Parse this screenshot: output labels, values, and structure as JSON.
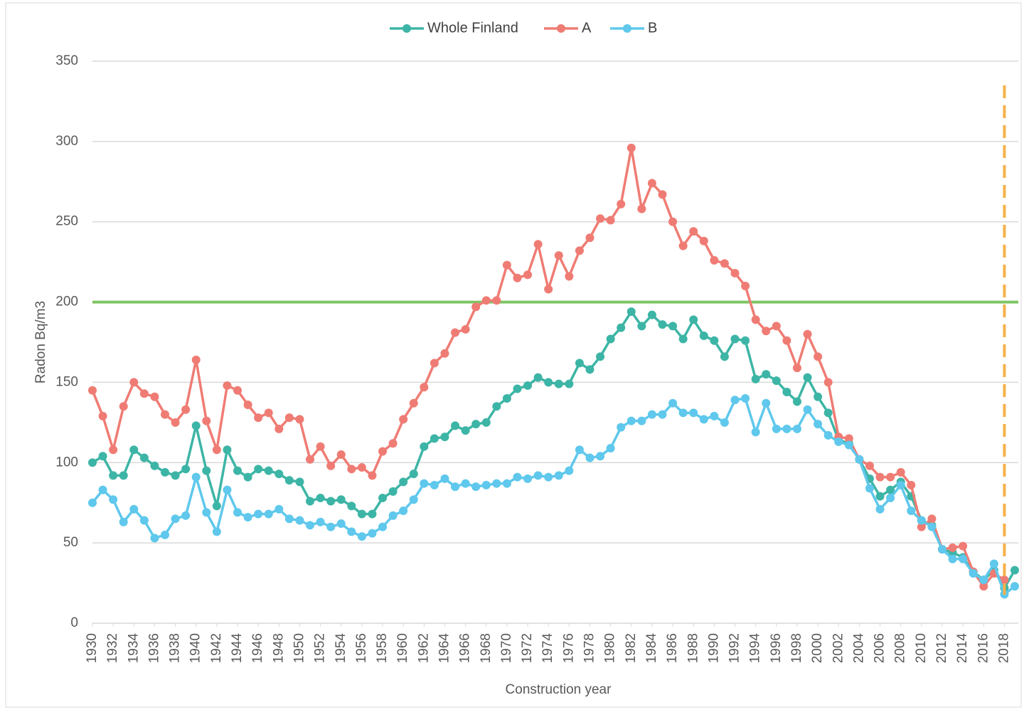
{
  "chart_data": {
    "type": "line",
    "y_label": "Radon Bq/m3",
    "x_label": "Construction year",
    "x": [
      1930,
      1931,
      1932,
      1933,
      1934,
      1935,
      1936,
      1937,
      1938,
      1939,
      1940,
      1941,
      1942,
      1943,
      1944,
      1945,
      1946,
      1947,
      1948,
      1949,
      1950,
      1951,
      1952,
      1953,
      1954,
      1955,
      1956,
      1957,
      1958,
      1959,
      1960,
      1961,
      1962,
      1963,
      1964,
      1965,
      1966,
      1967,
      1968,
      1969,
      1970,
      1971,
      1972,
      1973,
      1974,
      1975,
      1976,
      1977,
      1978,
      1979,
      1980,
      1981,
      1982,
      1983,
      1984,
      1985,
      1986,
      1987,
      1988,
      1989,
      1990,
      1991,
      1992,
      1993,
      1994,
      1995,
      1996,
      1997,
      1998,
      1999,
      2000,
      2001,
      2002,
      2003,
      2004,
      2005,
      2006,
      2007,
      2008,
      2009,
      2010,
      2011,
      2012,
      2013,
      2014,
      2015,
      2016,
      2017,
      2018,
      2019
    ],
    "xlim": [
      1930,
      2019
    ],
    "xticks": [
      1930,
      1932,
      1934,
      1936,
      1938,
      1940,
      1942,
      1944,
      1946,
      1948,
      1950,
      1952,
      1954,
      1956,
      1958,
      1960,
      1962,
      1964,
      1966,
      1968,
      1970,
      1972,
      1974,
      1976,
      1978,
      1980,
      1982,
      1984,
      1986,
      1988,
      1990,
      1992,
      1994,
      1996,
      1998,
      2000,
      2002,
      2004,
      2006,
      2008,
      2010,
      2012,
      2014,
      2016,
      2018
    ],
    "ylim": [
      0,
      350
    ],
    "yticks": [
      0,
      50,
      100,
      150,
      200,
      250,
      300,
      350
    ],
    "grid": true,
    "legend": "top",
    "reference_y": {
      "value": 200,
      "color": "#7ec465"
    },
    "reference_x": {
      "value": 2018,
      "color": "#f5b04a"
    },
    "series": [
      {
        "name": "Whole Finland",
        "color": "#3db5a6",
        "values": [
          100,
          104,
          92,
          92,
          108,
          103,
          98,
          94,
          92,
          96,
          123,
          95,
          73,
          108,
          95,
          91,
          96,
          95,
          93,
          89,
          88,
          76,
          78,
          76,
          77,
          73,
          68,
          68,
          78,
          82,
          88,
          93,
          110,
          115,
          116,
          123,
          120,
          124,
          125,
          135,
          140,
          146,
          148,
          153,
          150,
          149,
          149,
          162,
          158,
          166,
          177,
          184,
          194,
          185,
          192,
          186,
          185,
          177,
          189,
          179,
          176,
          166,
          177,
          176,
          152,
          155,
          151,
          144,
          138,
          153,
          141,
          131,
          114,
          112,
          102,
          90,
          79,
          83,
          88,
          79,
          64,
          61,
          46,
          44,
          41,
          32,
          27,
          33,
          22,
          33
        ]
      },
      {
        "name": "A",
        "color": "#ef7c74",
        "values": [
          145,
          129,
          108,
          135,
          150,
          143,
          141,
          130,
          125,
          133,
          164,
          126,
          108,
          148,
          145,
          136,
          128,
          131,
          121,
          128,
          127,
          102,
          110,
          98,
          105,
          96,
          97,
          92,
          107,
          112,
          127,
          137,
          147,
          162,
          168,
          181,
          183,
          197,
          201,
          201,
          223,
          215,
          217,
          236,
          208,
          229,
          216,
          232,
          240,
          252,
          251,
          261,
          296,
          258,
          274,
          267,
          250,
          235,
          244,
          238,
          226,
          224,
          218,
          210,
          189,
          182,
          185,
          176,
          159,
          180,
          166,
          150,
          116,
          115,
          102,
          98,
          91,
          91,
          94,
          86,
          60,
          65,
          46,
          47,
          48,
          32,
          23,
          31,
          27,
          null
        ]
      },
      {
        "name": "B",
        "color": "#5fc8ec",
        "values": [
          75,
          83,
          77,
          63,
          71,
          64,
          53,
          55,
          65,
          67,
          91,
          69,
          57,
          83,
          69,
          66,
          68,
          68,
          71,
          65,
          64,
          61,
          63,
          60,
          62,
          57,
          54,
          56,
          60,
          67,
          70,
          77,
          87,
          86,
          90,
          85,
          87,
          85,
          86,
          87,
          87,
          91,
          90,
          92,
          91,
          92,
          95,
          108,
          103,
          104,
          109,
          122,
          126,
          126,
          130,
          130,
          137,
          131,
          131,
          127,
          129,
          125,
          139,
          140,
          119,
          137,
          121,
          121,
          121,
          133,
          124,
          117,
          113,
          111,
          102,
          84,
          71,
          78,
          86,
          70,
          64,
          60,
          46,
          40,
          40,
          31,
          27,
          37,
          18,
          23
        ]
      }
    ]
  }
}
